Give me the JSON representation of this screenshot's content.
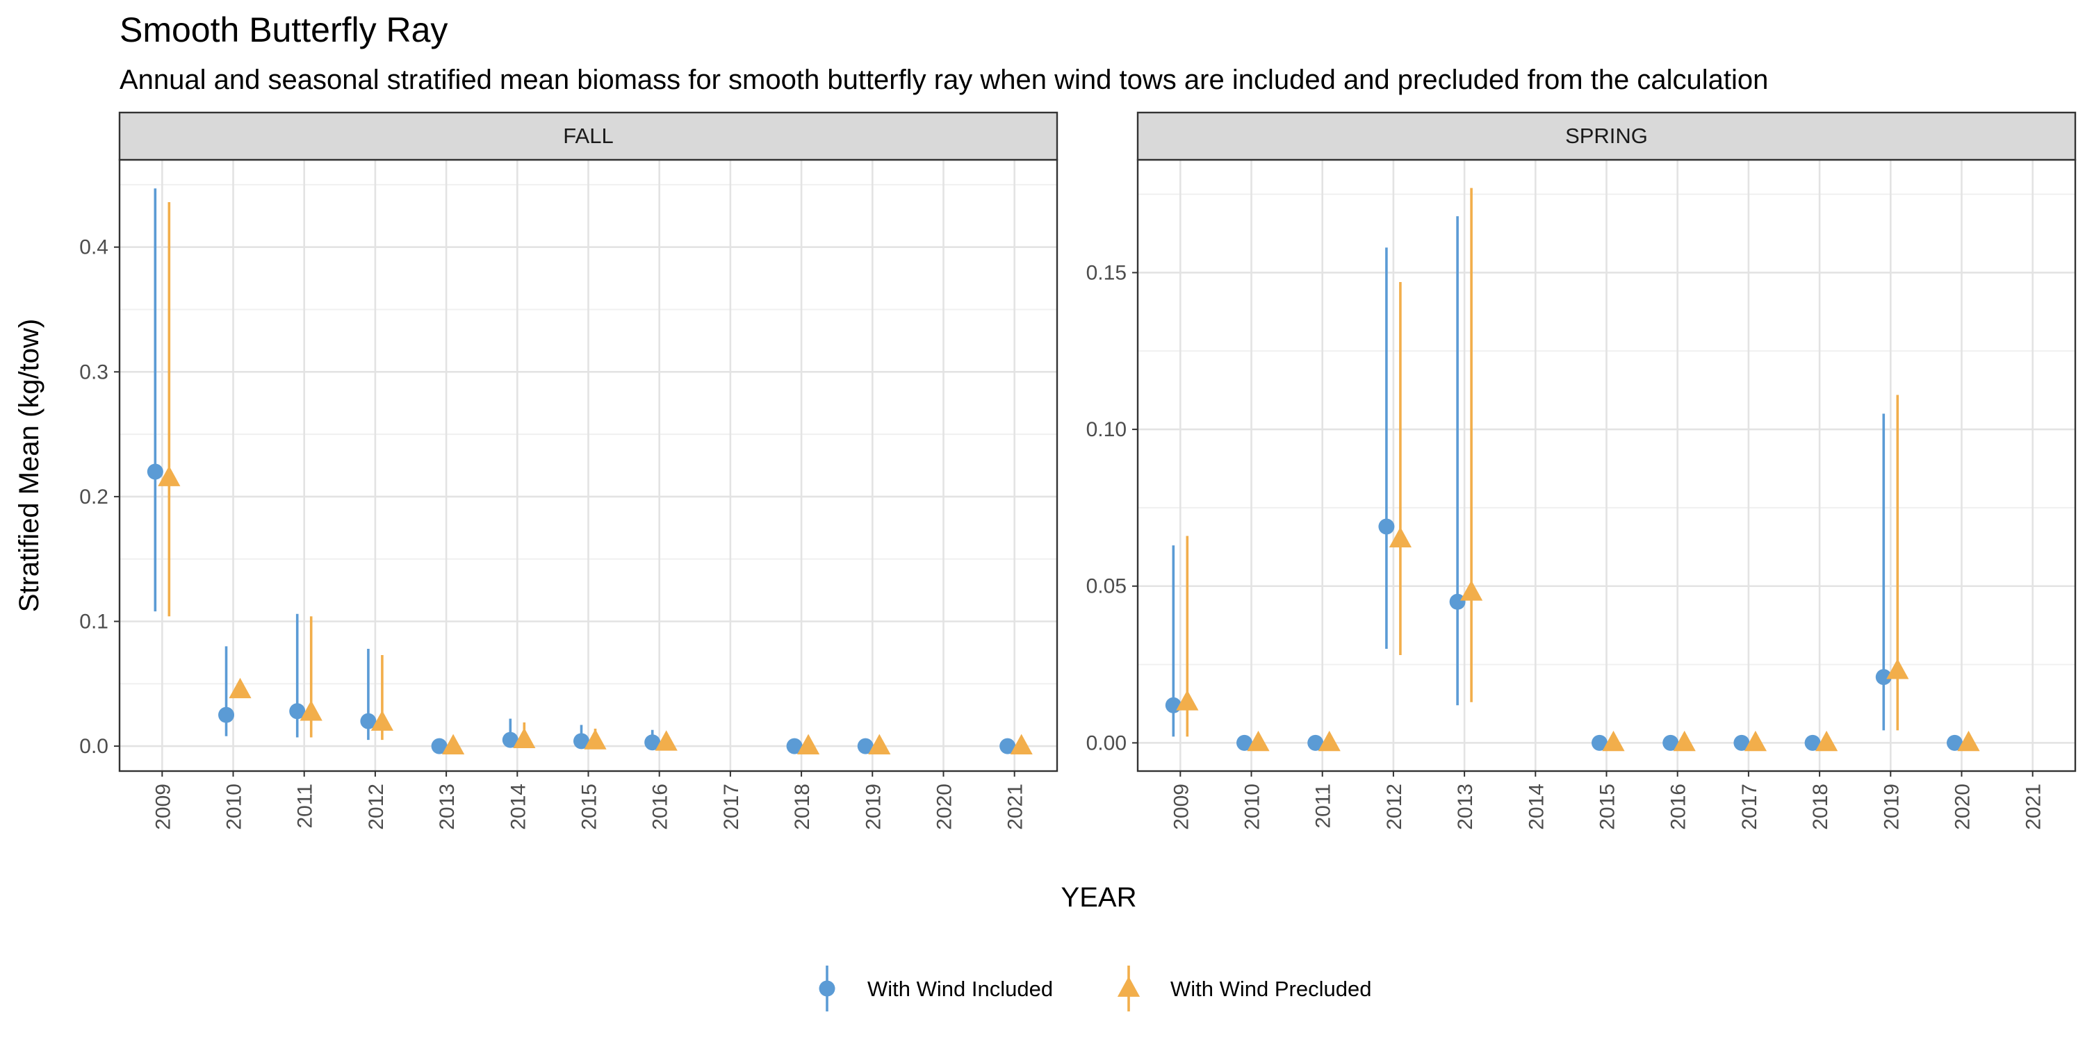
{
  "chart_data": {
    "type": "scatter",
    "title": "Smooth Butterfly Ray",
    "subtitle": "Annual and seasonal stratified mean biomass for smooth butterfly ray when wind tows are included and precluded from the calculation",
    "xlabel": "YEAR",
    "ylabel": "Stratified Mean (kg/tow)",
    "grid": true,
    "legend_position": "bottom",
    "series_styles": [
      {
        "name": "With Wind Included",
        "color": "#5B9BD5",
        "shape": "circle"
      },
      {
        "name": "With Wind Precluded",
        "color": "#F2AE4B",
        "shape": "triangle"
      }
    ],
    "panels": [
      {
        "name": "FALL",
        "x_ticks": [
          "2009",
          "2010",
          "2011",
          "2012",
          "2013",
          "2014",
          "2015",
          "2016",
          "2017",
          "2018",
          "2019",
          "2020",
          "2021"
        ],
        "y_ticks": [
          "0.0",
          "0.1",
          "0.2",
          "0.3",
          "0.4"
        ],
        "ylim": [
          -0.02,
          0.47
        ],
        "series": [
          {
            "name": "With Wind Included",
            "points": [
              {
                "x": "2009",
                "y": 0.22,
                "low": 0.108,
                "high": 0.447
              },
              {
                "x": "2010",
                "y": 0.025,
                "low": 0.008,
                "high": 0.08
              },
              {
                "x": "2011",
                "y": 0.028,
                "low": 0.007,
                "high": 0.106
              },
              {
                "x": "2012",
                "y": 0.02,
                "low": 0.005,
                "high": 0.078
              },
              {
                "x": "2013",
                "y": 0.0,
                "low": 0.0,
                "high": 0.0
              },
              {
                "x": "2014",
                "y": 0.005,
                "low": 0.0,
                "high": 0.022
              },
              {
                "x": "2015",
                "y": 0.004,
                "low": 0.0,
                "high": 0.017
              },
              {
                "x": "2016",
                "y": 0.003,
                "low": 0.0,
                "high": 0.013
              },
              {
                "x": "2018",
                "y": 0.0,
                "low": 0.0,
                "high": 0.0
              },
              {
                "x": "2019",
                "y": 0.0,
                "low": 0.0,
                "high": 0.0
              },
              {
                "x": "2021",
                "y": 0.0,
                "low": 0.0,
                "high": 0.0
              }
            ]
          },
          {
            "name": "With Wind Precluded",
            "points": [
              {
                "x": "2009",
                "y": 0.215,
                "low": 0.104,
                "high": 0.436
              },
              {
                "x": "2010",
                "y": 0.045,
                "low": 0.045,
                "high": 0.045
              },
              {
                "x": "2011",
                "y": 0.027,
                "low": 0.007,
                "high": 0.104
              },
              {
                "x": "2012",
                "y": 0.019,
                "low": 0.005,
                "high": 0.073
              },
              {
                "x": "2013",
                "y": 0.0,
                "low": 0.0,
                "high": 0.0
              },
              {
                "x": "2014",
                "y": 0.005,
                "low": 0.0,
                "high": 0.019
              },
              {
                "x": "2015",
                "y": 0.004,
                "low": 0.0,
                "high": 0.014
              },
              {
                "x": "2016",
                "y": 0.003,
                "low": 0.0,
                "high": 0.01
              },
              {
                "x": "2018",
                "y": 0.0,
                "low": 0.0,
                "high": 0.0
              },
              {
                "x": "2019",
                "y": 0.0,
                "low": 0.0,
                "high": 0.0
              },
              {
                "x": "2021",
                "y": 0.0,
                "low": 0.0,
                "high": 0.0
              }
            ]
          }
        ]
      },
      {
        "name": "SPRING",
        "x_ticks": [
          "2009",
          "2010",
          "2011",
          "2012",
          "2013",
          "2014",
          "2015",
          "2016",
          "2017",
          "2018",
          "2019",
          "2020",
          "2021"
        ],
        "y_ticks": [
          "0.00",
          "0.05",
          "0.10",
          "0.15"
        ],
        "ylim": [
          -0.009,
          0.186
        ],
        "series": [
          {
            "name": "With Wind Included",
            "points": [
              {
                "x": "2009",
                "y": 0.012,
                "low": 0.002,
                "high": 0.063
              },
              {
                "x": "2010",
                "y": 0.0,
                "low": 0.0,
                "high": 0.0
              },
              {
                "x": "2011",
                "y": 0.0,
                "low": 0.0,
                "high": 0.0
              },
              {
                "x": "2012",
                "y": 0.069,
                "low": 0.03,
                "high": 0.158
              },
              {
                "x": "2013",
                "y": 0.045,
                "low": 0.012,
                "high": 0.168
              },
              {
                "x": "2015",
                "y": 0.0,
                "low": 0.0,
                "high": 0.0
              },
              {
                "x": "2016",
                "y": 0.0,
                "low": 0.0,
                "high": 0.0
              },
              {
                "x": "2017",
                "y": 0.0,
                "low": 0.0,
                "high": 0.0
              },
              {
                "x": "2018",
                "y": 0.0,
                "low": 0.0,
                "high": 0.0
              },
              {
                "x": "2019",
                "y": 0.021,
                "low": 0.004,
                "high": 0.105
              },
              {
                "x": "2020",
                "y": 0.0,
                "low": 0.0,
                "high": 0.0
              }
            ]
          },
          {
            "name": "With Wind Precluded",
            "points": [
              {
                "x": "2009",
                "y": 0.013,
                "low": 0.002,
                "high": 0.066
              },
              {
                "x": "2010",
                "y": 0.0,
                "low": 0.0,
                "high": 0.0
              },
              {
                "x": "2011",
                "y": 0.0,
                "low": 0.0,
                "high": 0.0
              },
              {
                "x": "2012",
                "y": 0.065,
                "low": 0.028,
                "high": 0.147
              },
              {
                "x": "2013",
                "y": 0.048,
                "low": 0.013,
                "high": 0.177
              },
              {
                "x": "2015",
                "y": 0.0,
                "low": 0.0,
                "high": 0.0
              },
              {
                "x": "2016",
                "y": 0.0,
                "low": 0.0,
                "high": 0.0
              },
              {
                "x": "2017",
                "y": 0.0,
                "low": 0.0,
                "high": 0.0
              },
              {
                "x": "2018",
                "y": 0.0,
                "low": 0.0,
                "high": 0.0
              },
              {
                "x": "2019",
                "y": 0.023,
                "low": 0.004,
                "high": 0.111
              },
              {
                "x": "2020",
                "y": 0.0,
                "low": 0.0,
                "high": 0.0
              }
            ]
          }
        ]
      }
    ]
  }
}
